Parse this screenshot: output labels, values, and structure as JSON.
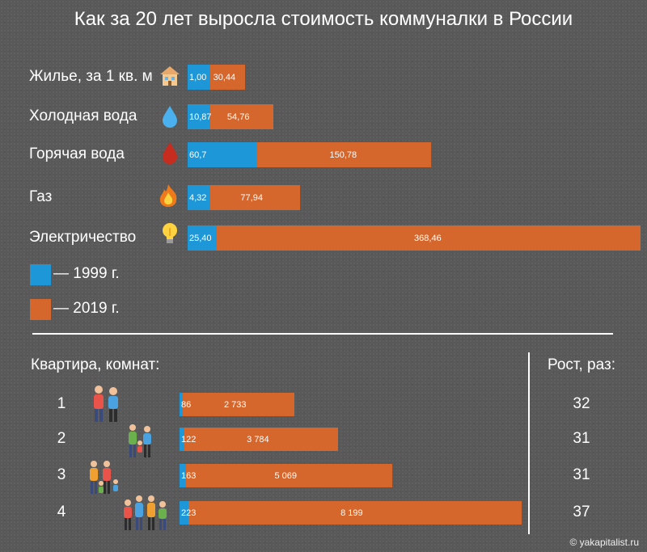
{
  "title": "Как за 20 лет выросла стоимость коммуналки в России",
  "colors": {
    "y1999": "#1e97d9",
    "y2019": "#d5662c",
    "background": "#595959"
  },
  "legend": [
    {
      "label": "— 1999 г.",
      "color": "#1e97d9"
    },
    {
      "label": "— 2019 г.",
      "color": "#d5662c"
    }
  ],
  "chart_data": [
    {
      "type": "bar",
      "orientation": "horizontal",
      "stacked": true,
      "title": "",
      "categories": [
        "Жилье, за 1 кв. м",
        "Холодная вода",
        "Горячая вода",
        "Газ",
        "Электричество"
      ],
      "category_icons": [
        "house-icon",
        "water-drop-icon",
        "hot-water-drop-icon",
        "flame-icon",
        "light-bulb-icon"
      ],
      "series": [
        {
          "name": "— 1999 г.",
          "values": [
            1.0,
            10.87,
            60.7,
            4.32,
            25.4
          ],
          "labels": [
            "1,00",
            "10,87",
            "60,7",
            "4,32",
            "25,40"
          ]
        },
        {
          "name": "— 2019 г.",
          "values": [
            30.44,
            54.76,
            150.78,
            77.94,
            368.46
          ],
          "labels": [
            "30,44",
            "54,76",
            "150,78",
            "77,94",
            "368,46"
          ]
        }
      ]
    },
    {
      "type": "bar",
      "orientation": "horizontal",
      "stacked": true,
      "category_header": "Квартира, комнат:",
      "growth_header": "Рост, раз:",
      "categories": [
        "1",
        "2",
        "3",
        "4"
      ],
      "series": [
        {
          "name": "— 1999 г.",
          "values": [
            86,
            122,
            163,
            223
          ],
          "labels": [
            "86",
            "122",
            "163",
            "223"
          ]
        },
        {
          "name": "— 2019 г.",
          "values": [
            2733,
            3784,
            5069,
            8199
          ],
          "labels": [
            "2 733",
            "3 784",
            "5 069",
            "8 199"
          ]
        }
      ],
      "growth": [
        "32",
        "31",
        "31",
        "37"
      ]
    }
  ],
  "credit": "© yakapitalist.ru"
}
